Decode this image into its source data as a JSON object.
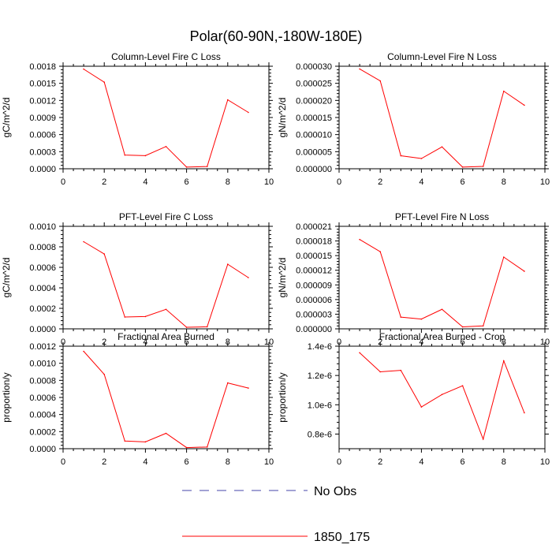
{
  "figure": {
    "title": "Polar(60-90N,-180W-180E)",
    "line_color": "#ff0000",
    "obs_color": "#4444aa"
  },
  "legend": {
    "items": [
      {
        "label": "No Obs",
        "style": "dashed",
        "color": "#4444aa"
      },
      {
        "label": "1850_175",
        "style": "solid",
        "color": "#ff0000"
      }
    ]
  },
  "chart_data": [
    {
      "type": "line",
      "title": "Column-Level Fire C Loss",
      "ylabel": "gC/m^2/d",
      "xlabel": "",
      "xlim": [
        0,
        10
      ],
      "ylim": [
        0,
        0.0018
      ],
      "xticks": [
        0,
        2,
        4,
        6,
        8,
        10
      ],
      "yticks": [
        0,
        0.0003,
        0.0006,
        0.0009,
        0.0012,
        0.0015,
        0.0018
      ],
      "yticklabels": [
        "0.0000",
        "0.0003",
        "0.0006",
        "0.0009",
        "0.0012",
        "0.0015",
        "0.0018"
      ],
      "series": [
        {
          "name": "1850_175",
          "x": [
            1,
            2,
            3,
            4,
            5,
            6,
            7,
            8,
            9
          ],
          "values": [
            0.00175,
            0.00152,
            0.00024,
            0.00023,
            0.00039,
            3e-05,
            4e-05,
            0.00121,
            0.00099
          ]
        }
      ]
    },
    {
      "type": "line",
      "title": "Column-Level Fire N Loss",
      "ylabel": "gN/m^2/d",
      "xlabel": "",
      "xlim": [
        0,
        10
      ],
      "ylim": [
        0,
        3e-05
      ],
      "xticks": [
        0,
        2,
        4,
        6,
        8,
        10
      ],
      "yticks": [
        0,
        5e-06,
        1e-05,
        1.5e-05,
        2e-05,
        2.5e-05,
        3e-05
      ],
      "yticklabels": [
        "0.000000",
        "0.000005",
        "0.000010",
        "0.000015",
        "0.000020",
        "0.000025",
        "0.000030"
      ],
      "series": [
        {
          "name": "1850_175",
          "x": [
            1,
            2,
            3,
            4,
            5,
            6,
            7,
            8,
            9
          ],
          "values": [
            2.92e-05,
            2.57e-05,
            3.8e-06,
            3e-06,
            6.4e-06,
            5e-07,
            7e-07,
            2.27e-05,
            1.86e-05
          ]
        }
      ]
    },
    {
      "type": "line",
      "title": "PFT-Level Fire C Loss",
      "ylabel": "gC/m^2/d",
      "xlabel": "",
      "xlim": [
        0,
        10
      ],
      "ylim": [
        0,
        0.001
      ],
      "xticks": [
        0,
        2,
        4,
        6,
        8,
        10
      ],
      "yticks": [
        0,
        0.0002,
        0.0004,
        0.0006,
        0.0008,
        0.001
      ],
      "yticklabels": [
        "0.0000",
        "0.0002",
        "0.0004",
        "0.0006",
        "0.0008",
        "0.0010"
      ],
      "series": [
        {
          "name": "1850_175",
          "x": [
            1,
            2,
            3,
            4,
            5,
            6,
            7,
            8,
            9
          ],
          "values": [
            0.00085,
            0.00073,
            0.000115,
            0.00012,
            0.00019,
            1.5e-05,
            2e-05,
            0.00063,
            0.0005
          ]
        }
      ]
    },
    {
      "type": "line",
      "title": "PFT-Level Fire N Loss",
      "ylabel": "gN/m^2/d",
      "xlabel": "",
      "xlim": [
        0,
        10
      ],
      "ylim": [
        0,
        2.1e-05
      ],
      "xticks": [
        0,
        2,
        4,
        6,
        8,
        10
      ],
      "yticks": [
        0,
        3e-06,
        6e-06,
        9e-06,
        1.2e-05,
        1.5e-05,
        1.8e-05,
        2.1e-05
      ],
      "yticklabels": [
        "0.000000",
        "0.000003",
        "0.000006",
        "0.000009",
        "0.000012",
        "0.000015",
        "0.000018",
        "0.000021"
      ],
      "series": [
        {
          "name": "1850_175",
          "x": [
            1,
            2,
            3,
            4,
            5,
            6,
            7,
            8,
            9
          ],
          "values": [
            1.83e-05,
            1.58e-05,
            2.4e-06,
            2e-06,
            4e-06,
            4e-07,
            6e-07,
            1.47e-05,
            1.18e-05
          ]
        }
      ]
    },
    {
      "type": "line",
      "title": "Fractional Area Burned",
      "ylabel": "proportion/y",
      "xlabel": "",
      "xlim": [
        0,
        10
      ],
      "ylim": [
        0,
        0.0012
      ],
      "xticks": [
        0,
        2,
        4,
        6,
        8,
        10
      ],
      "yticks": [
        0,
        0.0002,
        0.0004,
        0.0006,
        0.0008,
        0.001,
        0.0012
      ],
      "yticklabels": [
        "0.0000",
        "0.0002",
        "0.0004",
        "0.0006",
        "0.0008",
        "0.0010",
        "0.0012"
      ],
      "series": [
        {
          "name": "1850_175",
          "x": [
            1,
            2,
            3,
            4,
            5,
            6,
            7,
            8,
            9
          ],
          "values": [
            0.00114,
            0.00087,
            9e-05,
            8e-05,
            0.00018,
            1.3e-05,
            2e-05,
            0.00077,
            0.00071
          ]
        }
      ]
    },
    {
      "type": "line",
      "title": "Fractional Area Burned - Crop",
      "ylabel": "proportion/y",
      "xlabel": "",
      "xlim": [
        0,
        10
      ],
      "ylim": [
        7e-07,
        1.4e-06
      ],
      "xticks": [
        0,
        2,
        4,
        6,
        8,
        10
      ],
      "yticks": [
        8e-07,
        1e-06,
        1.2e-06,
        1.4e-06
      ],
      "yticklabels": [
        "0.8e-6",
        "1.0e-6",
        "1.2e-6",
        "1.4e-6"
      ],
      "series": [
        {
          "name": "1850_175",
          "x": [
            1,
            2,
            3,
            4,
            5,
            6,
            7,
            8,
            9
          ],
          "values": [
            1.355e-06,
            1.225e-06,
            1.235e-06,
            9.85e-07,
            1.07e-06,
            1.13e-06,
            7.65e-07,
            1.3e-06,
            9.45e-07
          ]
        }
      ]
    }
  ]
}
